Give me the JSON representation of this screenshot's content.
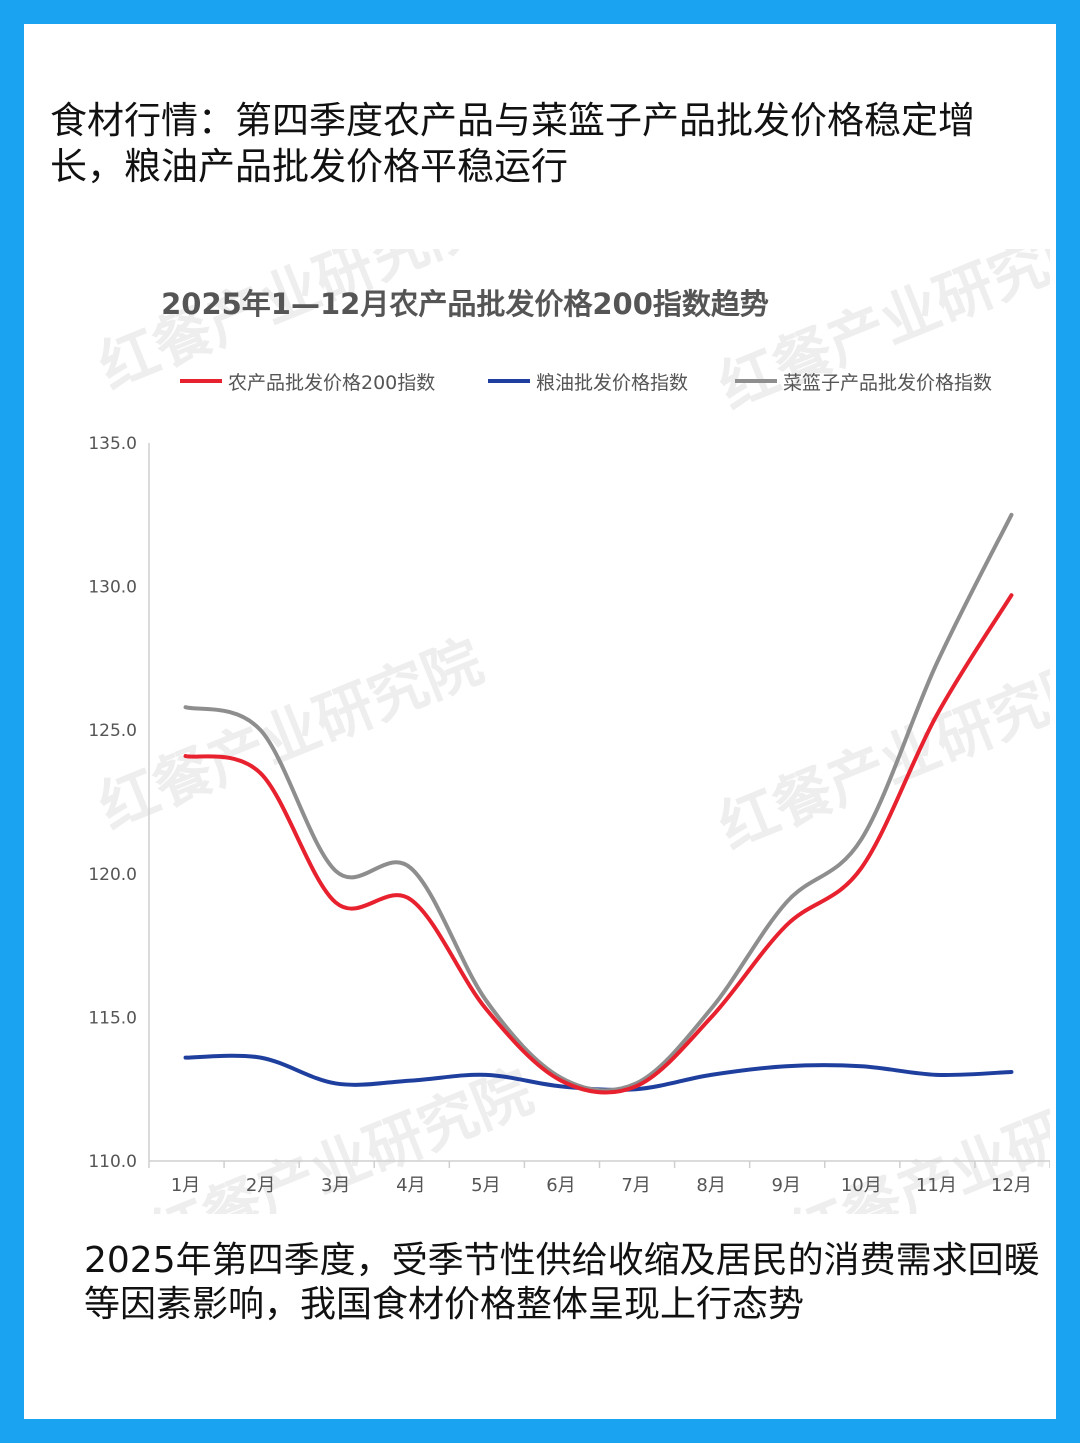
{
  "page": {
    "headline": "食材行情：第四季度农产品与菜篮子产品批发价格稳定增长，粮油产品批发价格平稳运行",
    "caption": "2025年第四季度，受季节性供给收缩及居民的消费需求回暖等因素影响，我国食材价格整体呈现上行态势",
    "watermark": "红餐产业研究院",
    "background_color": "#1aa3f0"
  },
  "chart_data": {
    "type": "line",
    "title": "2025年1—12月农产品批发价格200指数趋势",
    "categories": [
      "1月",
      "2月",
      "3月",
      "4月",
      "5月",
      "6月",
      "7月",
      "8月",
      "9月",
      "10月",
      "11月",
      "12月"
    ],
    "y_ticks": [
      "135.0",
      "130.0",
      "125.0",
      "120.0",
      "115.0",
      "110.0"
    ],
    "ylim": [
      110,
      135
    ],
    "legend_position": "top",
    "grid": false,
    "series": [
      {
        "name": "农产品批发价格200指数",
        "color": "#e8212f",
        "values": [
          124.1,
          123.5,
          119.0,
          119.1,
          115.3,
          112.8,
          112.6,
          115.0,
          118.2,
          120.2,
          125.5,
          129.7
        ]
      },
      {
        "name": "粮油批发价格指数",
        "color": "#1f3f9f",
        "values": [
          113.6,
          113.6,
          112.7,
          112.8,
          113.0,
          112.6,
          112.5,
          113.0,
          113.3,
          113.3,
          113.0,
          113.1
        ]
      },
      {
        "name": "菜篮子产品批发价格指数",
        "color": "#8e8e8e",
        "values": [
          125.8,
          125.0,
          120.1,
          120.2,
          115.6,
          112.9,
          112.7,
          115.3,
          119.0,
          121.2,
          127.3,
          132.5
        ]
      }
    ]
  }
}
